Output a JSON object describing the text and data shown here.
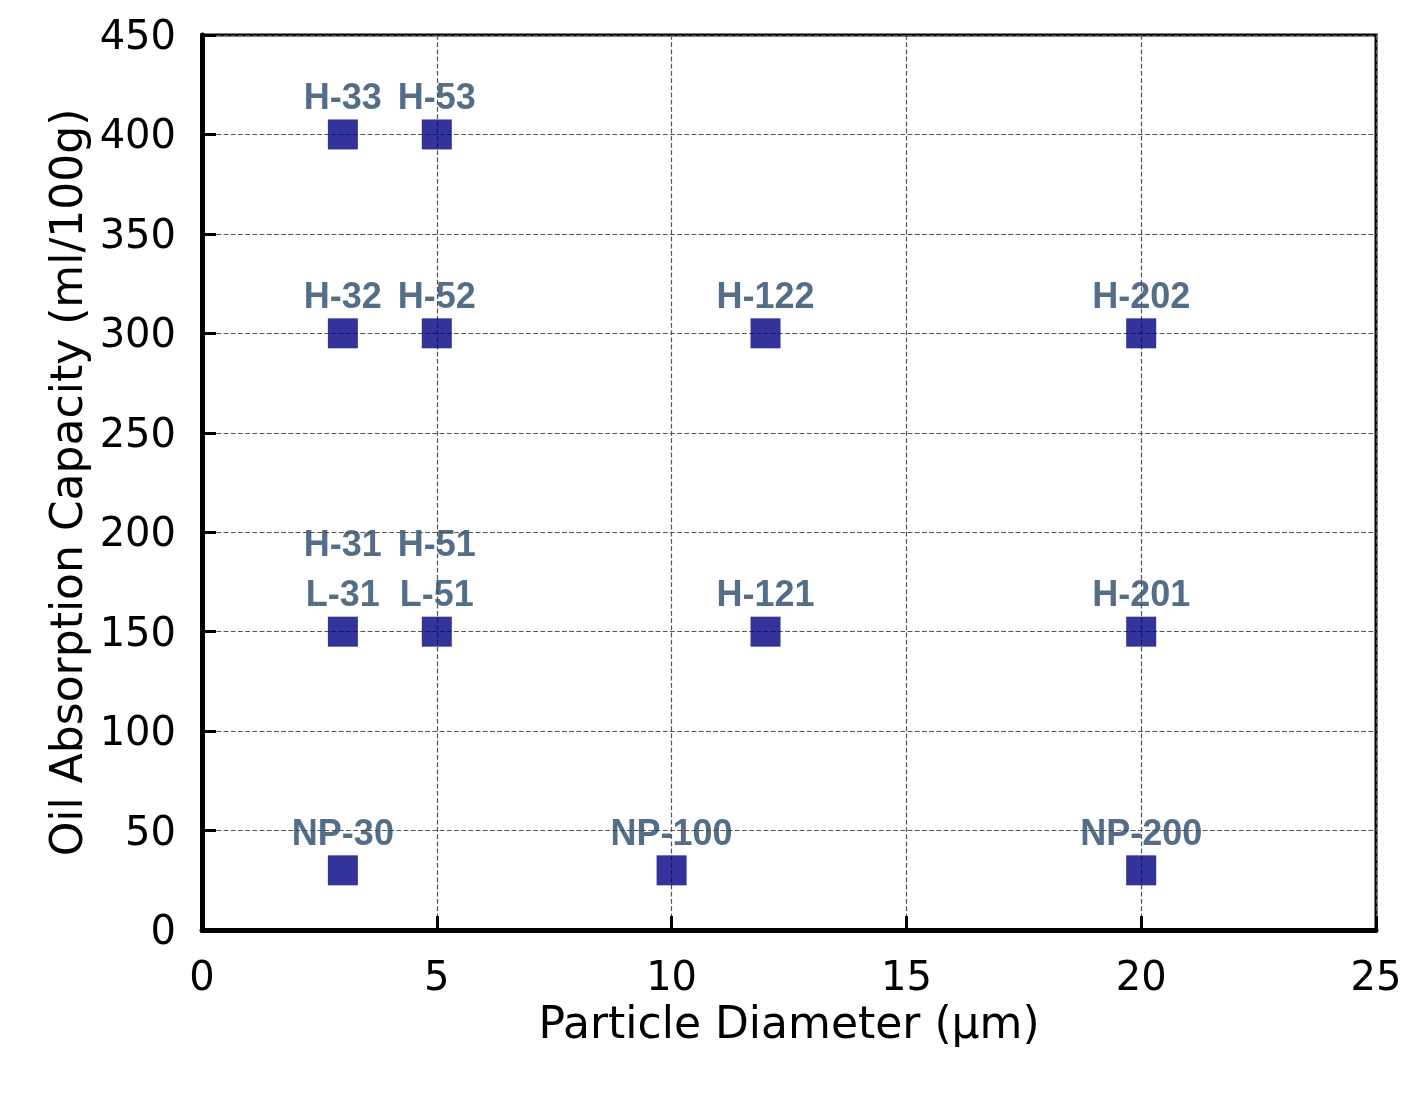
{
  "chart_data": {
    "type": "scatter",
    "xlabel": "Particle Diameter (µm)",
    "ylabel": "Oil Absorption Capacity (ml/100g)",
    "x": [
      3,
      5,
      3,
      5,
      12,
      20,
      3,
      5,
      12,
      20,
      3,
      10,
      20
    ],
    "values": [
      400,
      400,
      300,
      300,
      300,
      300,
      150,
      150,
      150,
      150,
      30,
      30,
      30
    ],
    "color": "#000080",
    "marker": "square",
    "grid": true,
    "xlim": [
      0,
      25
    ],
    "xticks": [
      0,
      5,
      10,
      15,
      20,
      25
    ],
    "ylim": [
      0,
      450
    ],
    "yticks": [
      0,
      50,
      100,
      150,
      200,
      250,
      300,
      350,
      400,
      450
    ],
    "annotations": [
      {
        "text": "H-33",
        "x": 3,
        "y": 400
      },
      {
        "text": "H-53",
        "x": 5,
        "y": 400
      },
      {
        "text": "H-32",
        "x": 3,
        "y": 300
      },
      {
        "text": "H-52",
        "x": 5,
        "y": 300
      },
      {
        "text": "H-122",
        "x": 12,
        "y": 300
      },
      {
        "text": "H-202",
        "x": 20,
        "y": 300
      },
      {
        "text": "L-31",
        "x": 3,
        "y": 150
      },
      {
        "text": "H-31",
        "x": 3,
        "y": 150
      },
      {
        "text": "L-51",
        "x": 5,
        "y": 150
      },
      {
        "text": "H-51",
        "x": 5,
        "y": 150
      },
      {
        "text": "H-121",
        "x": 12,
        "y": 150
      },
      {
        "text": "H-201",
        "x": 20,
        "y": 150
      },
      {
        "text": "NP-30",
        "x": 3,
        "y": 30
      },
      {
        "text": "NP-100",
        "x": 10,
        "y": 30
      },
      {
        "text": "NP-200",
        "x": 20,
        "y": 30
      }
    ]
  }
}
